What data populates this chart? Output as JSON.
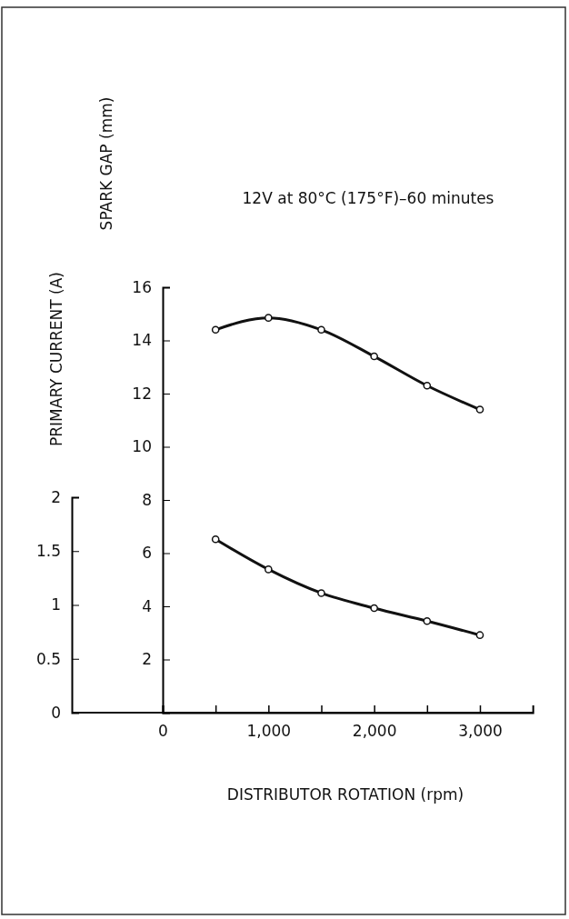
{
  "chart_data": {
    "type": "line",
    "title": "12V at 80°C (175°F)–60 minutes",
    "xlabel": "DISTRIBUTOR ROTATION (rpm)",
    "ylabel": "SPARK GAP (mm)",
    "y2label": "PRIMARY CURRENT (A)",
    "x": [
      500,
      1000,
      1500,
      2000,
      2500,
      3000
    ],
    "xlim": [
      0,
      3500
    ],
    "xticks": [
      0,
      {
        "value": 500,
        "label": null
      },
      {
        "value": 1000,
        "label": "1,000"
      },
      {
        "value": 1500,
        "label": null
      },
      {
        "value": 2000,
        "label": "2,000"
      },
      {
        "value": 2500,
        "label": null
      },
      {
        "value": 3000,
        "label": "3,000"
      }
    ],
    "ylim": [
      0,
      16
    ],
    "yticks": [
      2,
      4,
      6,
      8,
      10,
      12,
      14,
      16
    ],
    "y2lim": [
      0,
      2
    ],
    "y2ticks": [
      0,
      0.5,
      1,
      1.5,
      2
    ],
    "series": [
      {
        "color": "#111111",
        "values": [
          14.4,
          14.85,
          14.4,
          13.4,
          12.3,
          11.4
        ]
      },
      {
        "color": "#111111",
        "axis": "y2",
        "values": [
          1.61,
          1.33,
          1.11,
          0.97,
          0.85,
          0.72
        ]
      }
    ],
    "marker": "circle",
    "line_style": "solid"
  }
}
